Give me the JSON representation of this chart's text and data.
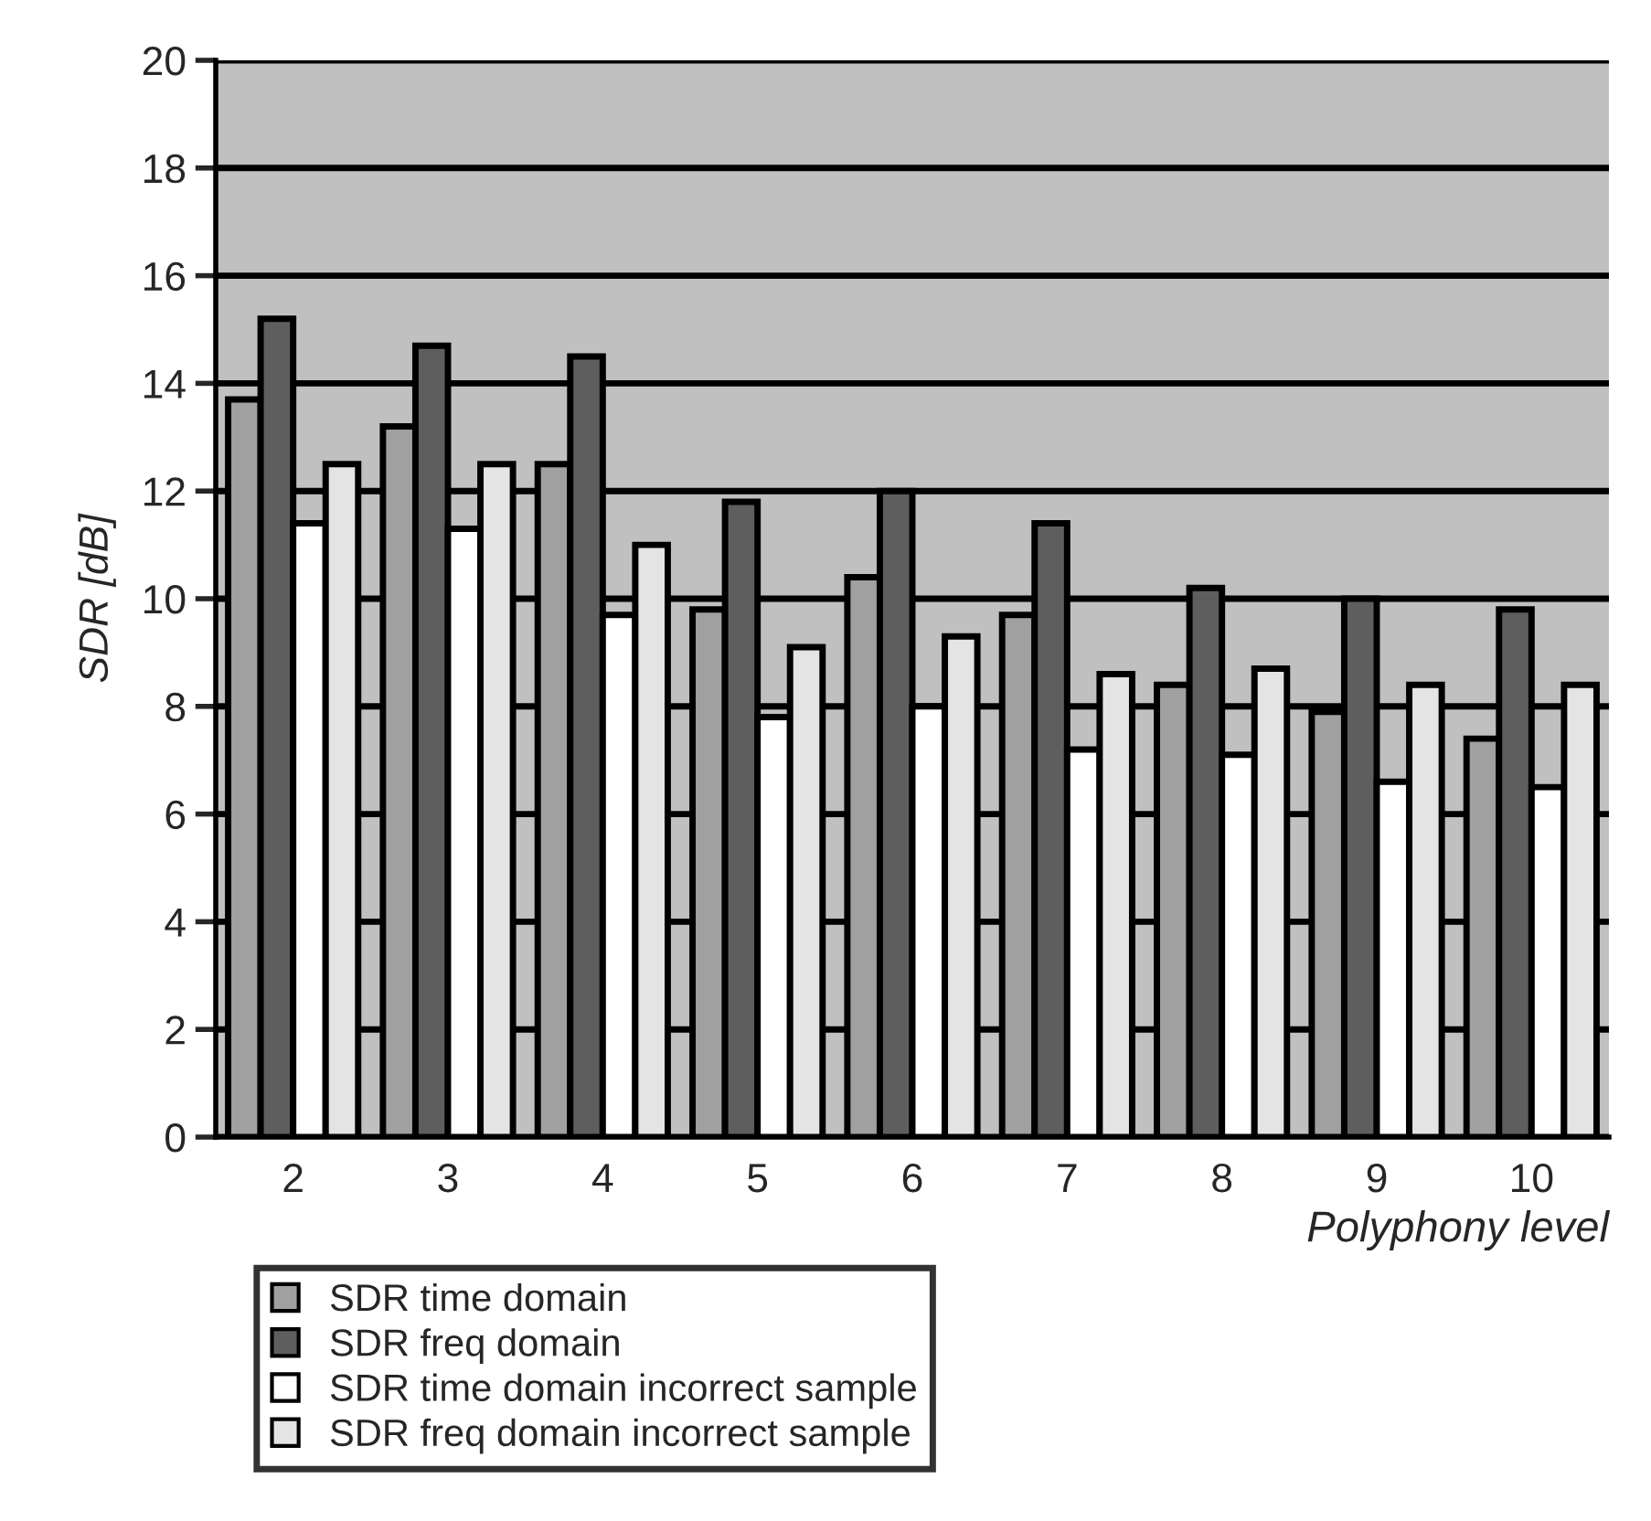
{
  "chart_data": {
    "type": "bar",
    "xlabel": "Polyphony level",
    "ylabel": "SDR [dB]",
    "categories": [
      "2",
      "3",
      "4",
      "5",
      "6",
      "7",
      "8",
      "9",
      "10"
    ],
    "series": [
      {
        "name": "SDR time domain",
        "color": "#a0a0a0",
        "values": [
          13.7,
          13.2,
          12.5,
          9.8,
          10.4,
          9.7,
          8.4,
          7.9,
          7.4
        ]
      },
      {
        "name": "SDR freq domain",
        "color": "#5e5e5e",
        "values": [
          15.2,
          14.7,
          14.5,
          11.8,
          12.0,
          11.4,
          10.2,
          10.0,
          9.8
        ]
      },
      {
        "name": "SDR time domain incorrect sample",
        "color": "#ffffff",
        "values": [
          11.4,
          11.3,
          9.7,
          7.8,
          8.0,
          7.2,
          7.1,
          6.6,
          6.5
        ]
      },
      {
        "name": "SDR freq domain incorrect sample",
        "color": "#e4e4e4",
        "values": [
          12.5,
          12.5,
          11.0,
          9.1,
          9.3,
          8.6,
          8.7,
          8.4,
          8.4
        ]
      }
    ],
    "ylim": [
      0,
      20
    ],
    "yticks": [
      0,
      2,
      4,
      6,
      8,
      10,
      12,
      14,
      16,
      18,
      20
    ],
    "grid": "y",
    "legend": "bottom left"
  }
}
